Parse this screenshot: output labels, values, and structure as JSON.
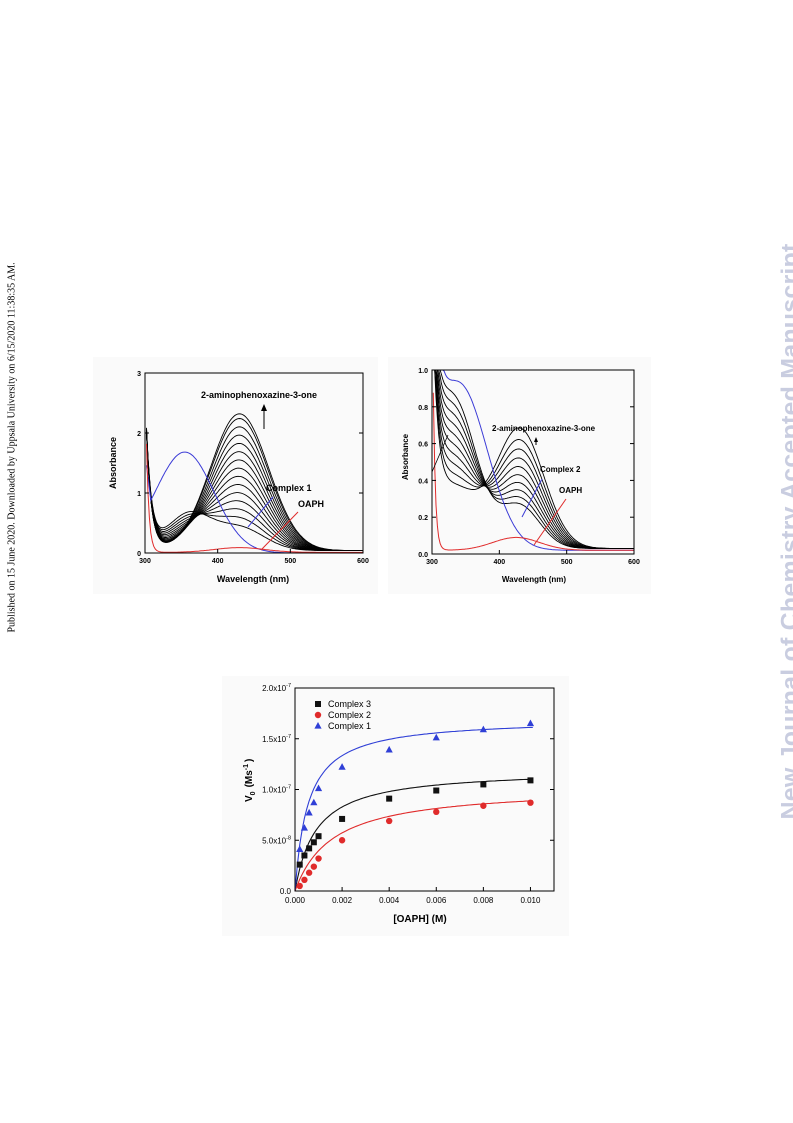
{
  "side_note": "Published on 15 June 2020. Downloaded by Uppsala University on 6/15/2020 11:38:35 AM.",
  "watermark": "New Journal of Chemistry Accepted Manuscript",
  "chart_data": [
    {
      "type": "line",
      "panel": "uv-vis-complex-1",
      "xlabel": "Wavelength (nm)",
      "ylabel": "Absorbance",
      "xlim": [
        300,
        600
      ],
      "ylim": [
        0,
        3
      ],
      "xticks": [
        "300",
        "400",
        "500",
        "600"
      ],
      "yticks": [
        "0",
        "1",
        "2",
        "3"
      ],
      "annotations": {
        "product": "2-aminophenoxazine-3-one",
        "complex": "Complex 1",
        "substrate": "OAPH"
      },
      "colors": {
        "complex": "#3b3bd6",
        "substrate": "#e02b2b",
        "scans": "#000000"
      },
      "peak_maxima_at_430nm": [
        0.38,
        0.52,
        0.66,
        0.8,
        0.94,
        1.08,
        1.22,
        1.36,
        1.5,
        1.64,
        1.78,
        1.92,
        2.06,
        2.2,
        2.28
      ],
      "complex_band": {
        "peak_nm": 355,
        "peak_absorbance": 1.67
      },
      "substrate_band": {
        "peak_nm": 430,
        "peak_absorbance": 0.08
      }
    },
    {
      "type": "line",
      "panel": "uv-vis-complex-2",
      "xlabel": "Wavelength (nm)",
      "ylabel": "Absorbance",
      "xlim": [
        300,
        600
      ],
      "ylim": [
        0,
        1.0
      ],
      "xticks": [
        "300",
        "400",
        "500",
        "600"
      ],
      "yticks": [
        "0.0",
        "0.2",
        "0.4",
        "0.6",
        "0.8",
        "1.0"
      ],
      "annotations": {
        "product": "2-aminophenoxazine-3-one",
        "complex": "Complex 2",
        "substrate": "OAPH"
      },
      "colors": {
        "complex": "#3b3bd6",
        "substrate": "#e02b2b",
        "scans": "#000000"
      },
      "isosbestic_point": {
        "nm": 390,
        "absorbance": 0.45
      },
      "peak_maxima_at_430nm": [
        0.46,
        0.48,
        0.5,
        0.52,
        0.54,
        0.56,
        0.58,
        0.6,
        0.62,
        0.65
      ],
      "complex_band": {
        "peak_nm": 340,
        "peak_absorbance": 0.9
      },
      "substrate_band": {
        "peak_nm": 425,
        "peak_absorbance": 0.07
      }
    },
    {
      "type": "scatter",
      "panel": "kinetics",
      "xlabel": "[OAPH] (M)",
      "ylabel": "V",
      "ylabel_sub": "0",
      "ylabel_unit": "(Ms",
      "ylabel_unit_sup": "-1",
      "ylabel_close": ")",
      "xlim": [
        0,
        0.011
      ],
      "ylim": [
        0,
        2e-07
      ],
      "xticks": [
        "0.000",
        "0.002",
        "0.004",
        "0.006",
        "0.008",
        "0.010"
      ],
      "ytick_labels": [
        {
          "mantissa": "0.0",
          "exp": ""
        },
        {
          "mantissa": "5.0x10",
          "exp": "-8"
        },
        {
          "mantissa": "1.0x10",
          "exp": "-7"
        },
        {
          "mantissa": "1.5x10",
          "exp": "-7"
        },
        {
          "mantissa": "2.0x10",
          "exp": "-7"
        }
      ],
      "x": [
        0.0002,
        0.0004,
        0.0006,
        0.0008,
        0.001,
        0.002,
        0.004,
        0.006,
        0.008,
        0.01
      ],
      "series": [
        {
          "name": "Complex 3",
          "marker": "square",
          "color": "#111111",
          "values": [
            2.6e-08,
            3.5e-08,
            4.2e-08,
            4.8e-08,
            5.4e-08,
            7.1e-08,
            9.1e-08,
            9.9e-08,
            1.05e-07,
            1.09e-07
          ],
          "fit": {
            "vmax": 1.2e-07,
            "km": 0.0009
          }
        },
        {
          "name": "Complex 2",
          "marker": "circle",
          "color": "#e02b2b",
          "values": [
            5e-09,
            1.1e-08,
            1.8e-08,
            2.4e-08,
            3.2e-08,
            5e-08,
            6.9e-08,
            7.8e-08,
            8.4e-08,
            8.7e-08
          ],
          "fit": {
            "vmax": 1.03e-07,
            "km": 0.0016
          }
        },
        {
          "name": "Complex 1",
          "marker": "triangle",
          "color": "#2f3fd6",
          "values": [
            4.1e-08,
            6.2e-08,
            7.7e-08,
            8.7e-08,
            1.01e-07,
            1.22e-07,
            1.39e-07,
            1.51e-07,
            1.59e-07,
            1.65e-07
          ],
          "fit": {
            "vmax": 1.7e-07,
            "km": 0.00055
          }
        }
      ]
    }
  ]
}
